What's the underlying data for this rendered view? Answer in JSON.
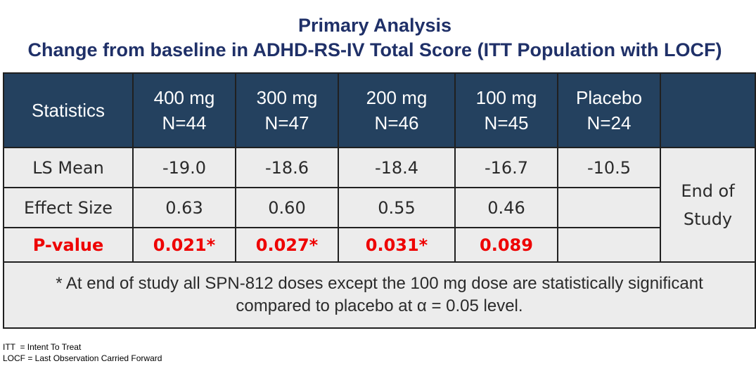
{
  "title": "Primary Analysis",
  "subtitle": "Change from baseline in ADHD-RS-IV Total Score (ITT Population with LOCF)",
  "chart_data": {
    "type": "table",
    "columns": [
      {
        "label": "Statistics"
      },
      {
        "dose": "400 mg",
        "n": "N=44"
      },
      {
        "dose": "300 mg",
        "n": "N=47"
      },
      {
        "dose": "200 mg",
        "n": "N=46"
      },
      {
        "dose": "100 mg",
        "n": "N=45"
      },
      {
        "dose": "Placebo",
        "n": "N=24"
      },
      {
        "label": ""
      }
    ],
    "rows": [
      {
        "label": "LS Mean",
        "values": [
          "-19.0",
          "-18.6",
          "-18.4",
          "-16.7",
          "-10.5"
        ]
      },
      {
        "label": "Effect Size",
        "values": [
          "0.63",
          "0.60",
          "0.55",
          "0.46",
          ""
        ]
      },
      {
        "label": "P-value",
        "values": [
          "0.021*",
          "0.027*",
          "0.031*",
          "0.089",
          ""
        ]
      }
    ],
    "timepoint": {
      "line1": "End of",
      "line2": "Study"
    },
    "note_line1": "* At end of study all SPN-812 doses except the 100 mg dose are statistically significant",
    "note_line2": "compared to placebo at α = 0.05 level."
  },
  "footnotes": [
    "ITT  = Intent To Treat",
    "LOCF = Last Observation Carried Forward"
  ],
  "colors": {
    "title": "#1f3068",
    "header_bg": "#24415f",
    "body_bg": "#ececec",
    "pvalue": "#ee0000"
  }
}
